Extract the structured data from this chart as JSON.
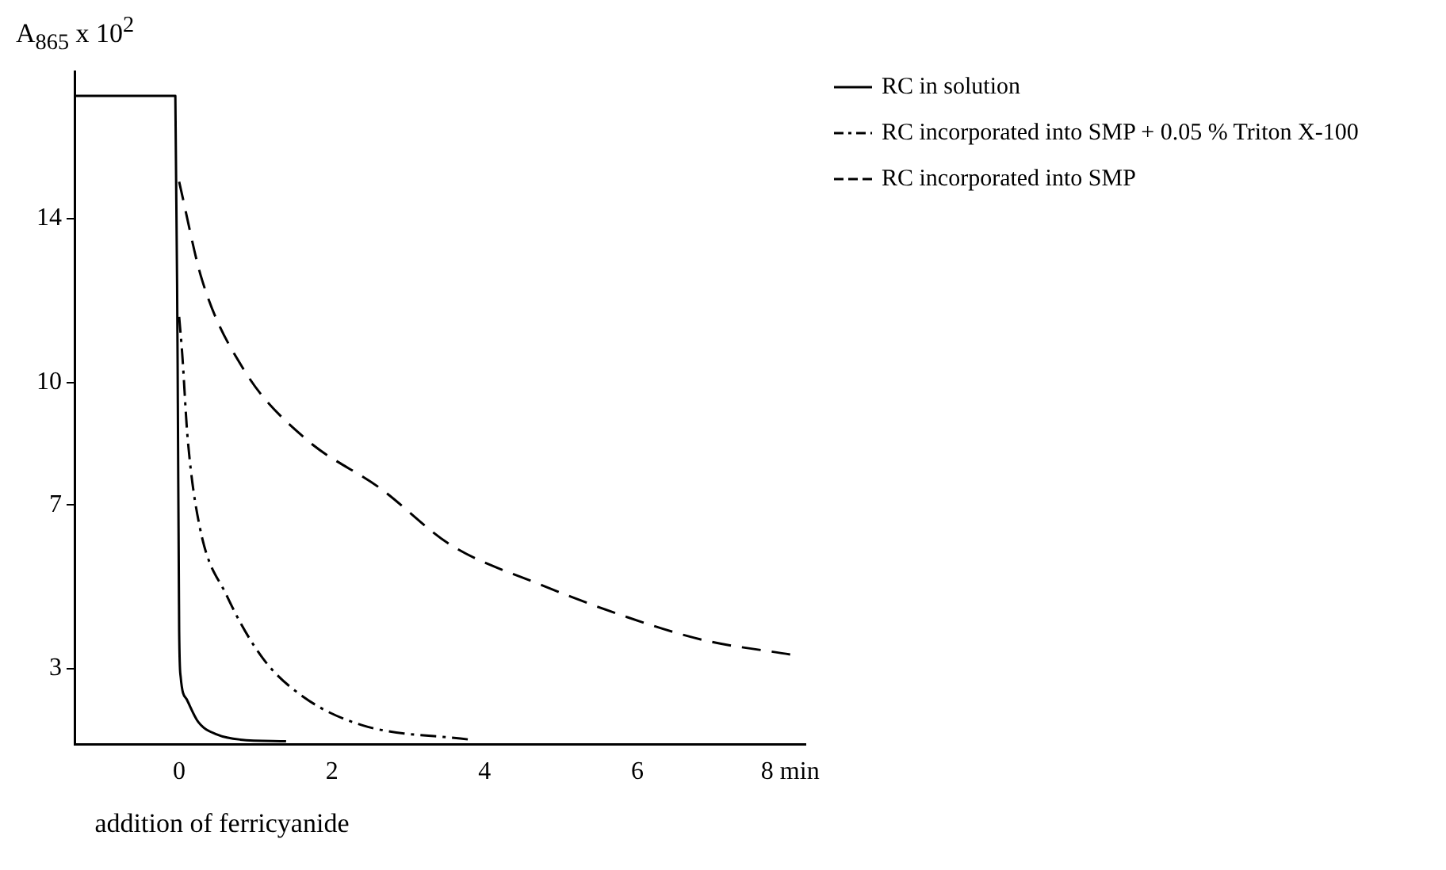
{
  "chart_data": {
    "type": "line",
    "xlabel": "addition of ferricyanide",
    "ylabel": "A$_{865}$ x 10$^{2}$",
    "xlim": [
      -1.37,
      8.2
    ],
    "ylim": [
      1.15,
      17.6
    ],
    "xticks": [
      0,
      2,
      4,
      6,
      {
        "value": 8,
        "label": "8 min"
      }
    ],
    "yticks": [
      3,
      7,
      10,
      14
    ],
    "grid": false,
    "legend": "top right",
    "marker": "none",
    "series": [
      {
        "name": "RC in solution",
        "color": "#000000",
        "line_style": "solid",
        "x": [
          -1.37,
          -0.05,
          -0.02,
          0,
          0.02,
          0.1,
          0.25,
          0.5,
          0.8,
          1.4
        ],
        "values": [
          17,
          17,
          10.4,
          3.94,
          2.8,
          2.25,
          1.7,
          1.39,
          1.27,
          1.23
        ]
      },
      {
        "name": "RC incorporated into SMP + 0.05 % Triton X-100",
        "color": "#000000",
        "line_style": "dashdot",
        "x": [
          0,
          0.04,
          0.11,
          0.27,
          0.62,
          1.09,
          1.63,
          2.4,
          3.8
        ],
        "values": [
          11.6,
          10.7,
          8.66,
          6.46,
          4.8,
          3.27,
          2.31,
          1.62,
          1.27
        ]
      },
      {
        "name": "RC incorporated into SMP",
        "color": "#000000",
        "line_style": "dashed",
        "x": [
          0,
          0.3,
          0.85,
          1.63,
          2.64,
          3.56,
          4.7,
          5.87,
          6.87,
          8.0
        ],
        "values": [
          14.9,
          12.5,
          10.3,
          8.66,
          7.4,
          6.02,
          5.08,
          4.26,
          3.7,
          3.35
        ]
      }
    ]
  }
}
